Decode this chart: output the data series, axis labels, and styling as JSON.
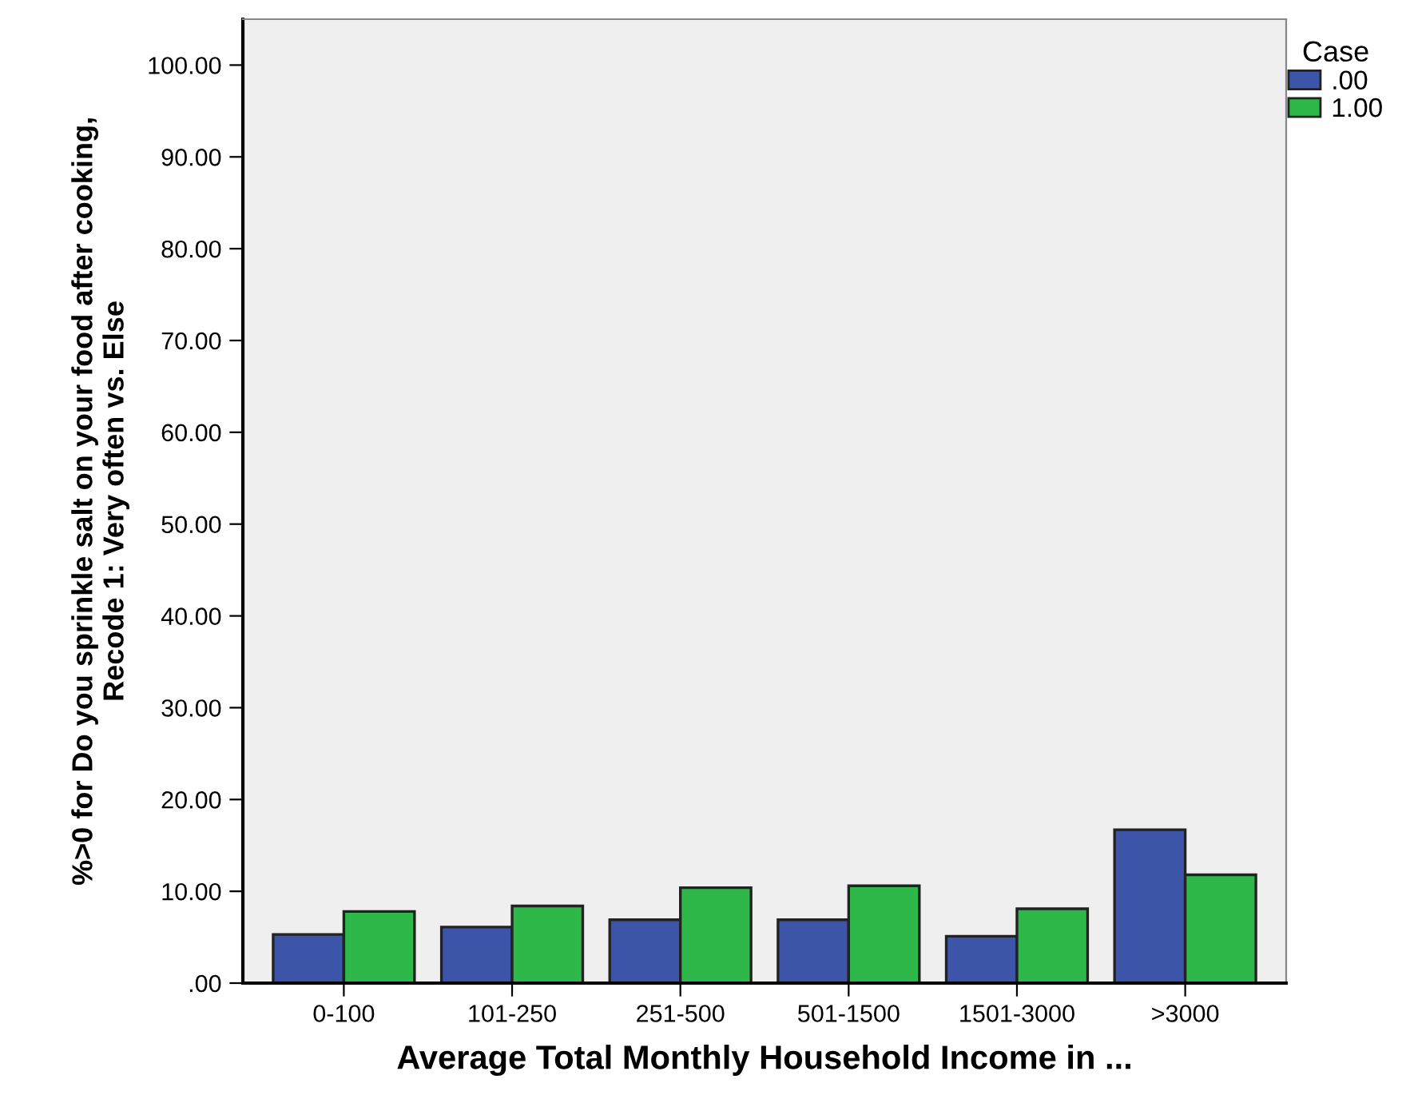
{
  "chart_data": {
    "type": "bar",
    "xlabel": "Average Total Monthly Household Income in ...",
    "ylabel": "%>0 for Do you sprinkle salt on your food after cooking,\nRecode 1: Very often vs. Else",
    "legend_title": "Case",
    "legend": "top right",
    "grid": false,
    "categories": [
      "0-100",
      "101-250",
      "251-500",
      "501-1500",
      "1501-3000",
      ">3000"
    ],
    "series": [
      {
        "name": ".00",
        "color": "#3d55a8",
        "values": [
          5.3,
          6.1,
          6.9,
          6.9,
          5.1,
          16.7
        ]
      },
      {
        "name": "1.00",
        "color": "#2eb84a",
        "values": [
          7.8,
          8.4,
          10.4,
          10.6,
          8.1,
          11.8
        ]
      }
    ],
    "ylim": [
      0,
      105
    ],
    "yticks": [
      {
        "value": 0,
        "label": ".00"
      },
      {
        "value": 10,
        "label": "10.00"
      },
      {
        "value": 20,
        "label": "20.00"
      },
      {
        "value": 30,
        "label": "30.00"
      },
      {
        "value": 40,
        "label": "40.00"
      },
      {
        "value": 50,
        "label": "50.00"
      },
      {
        "value": 60,
        "label": "60.00"
      },
      {
        "value": 70,
        "label": "70.00"
      },
      {
        "value": 80,
        "label": "80.00"
      },
      {
        "value": 90,
        "label": "90.00"
      },
      {
        "value": 100,
        "label": "100.00"
      }
    ]
  }
}
